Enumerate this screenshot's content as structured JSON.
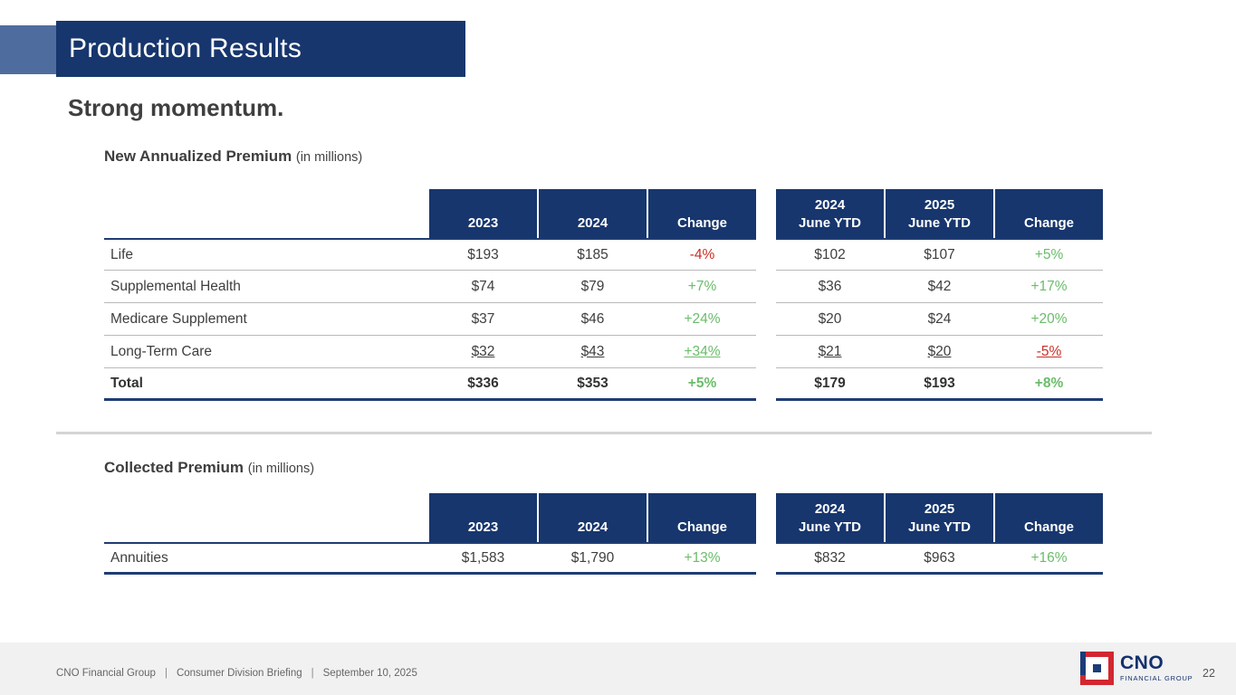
{
  "banner": {
    "title": "Production Results"
  },
  "subtitle": "Strong momentum.",
  "colors": {
    "navy": "#17366d",
    "accent_blue": "#4e6d9e",
    "positive_green": "#6abc6a",
    "negative_red": "#cb2c24",
    "logo_red": "#d22730"
  },
  "new_annualized": {
    "heading": "New Annualized Premium",
    "unit": "(in millions)",
    "left_columns": [
      "2023",
      "2024",
      "Change"
    ],
    "right_columns": [
      "2024\nJune YTD",
      "2025\nJune YTD",
      "Change"
    ],
    "rows": [
      {
        "label": "Life",
        "y2023": "$193",
        "y2024": "$185",
        "change": "-4%",
        "change_dir": "neg",
        "ytd2024": "$102",
        "ytd2025": "$107",
        "ytd_change": "+5%",
        "ytd_change_dir": "pos"
      },
      {
        "label": "Supplemental Health",
        "y2023": "$74",
        "y2024": "$79",
        "change": "+7%",
        "change_dir": "pos",
        "ytd2024": "$36",
        "ytd2025": "$42",
        "ytd_change": "+17%",
        "ytd_change_dir": "pos"
      },
      {
        "label": "Medicare Supplement",
        "y2023": "$37",
        "y2024": "$46",
        "change": "+24%",
        "change_dir": "pos",
        "ytd2024": "$20",
        "ytd2025": "$24",
        "ytd_change": "+20%",
        "ytd_change_dir": "pos"
      },
      {
        "label": "Long-Term Care",
        "y2023": "$32",
        "y2024": "$43",
        "change": "+34%",
        "change_dir": "pos",
        "ytd2024": "$21",
        "ytd2025": "$20",
        "ytd_change": "-5%",
        "ytd_change_dir": "neg"
      }
    ],
    "total": {
      "label": "Total",
      "y2023": "$336",
      "y2024": "$353",
      "change": "+5%",
      "change_dir": "pos",
      "ytd2024": "$179",
      "ytd2025": "$193",
      "ytd_change": "+8%",
      "ytd_change_dir": "pos"
    }
  },
  "collected": {
    "heading": "Collected Premium",
    "unit": "(in millions)",
    "left_columns": [
      "2023",
      "2024",
      "Change"
    ],
    "right_columns": [
      "2024\nJune YTD",
      "2025\nJune YTD",
      "Change"
    ],
    "rows": [
      {
        "label": "Annuities",
        "y2023": "$1,583",
        "y2024": "$1,790",
        "change": "+13%",
        "change_dir": "pos",
        "ytd2024": "$832",
        "ytd2025": "$963",
        "ytd_change": "+16%",
        "ytd_change_dir": "pos"
      }
    ]
  },
  "footer": {
    "items": [
      "CNO Financial Group",
      "Consumer Division Briefing",
      "September 10, 2025"
    ],
    "separator": "|",
    "page_number": "22",
    "logo": {
      "brand": "CNO",
      "tagline": "FINANCIAL GROUP"
    }
  }
}
